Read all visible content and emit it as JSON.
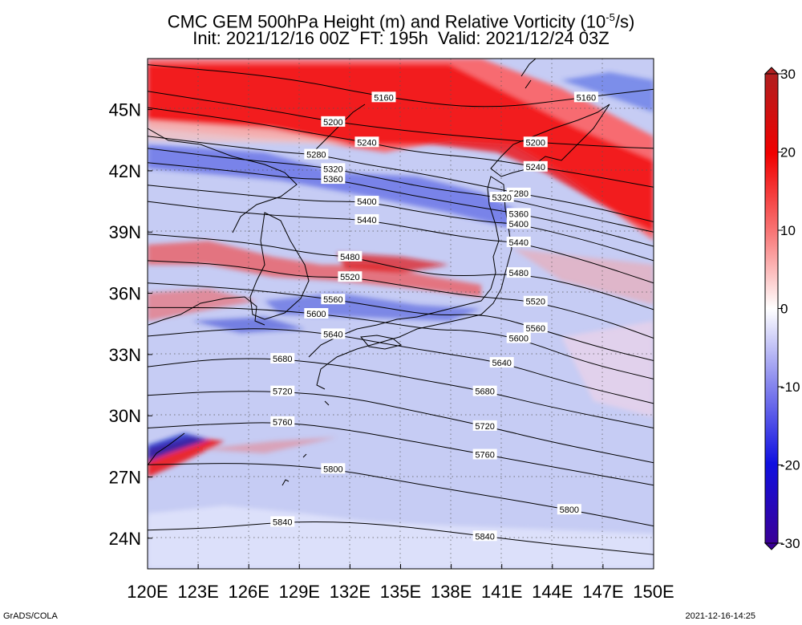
{
  "title": {
    "line1": "CMC GEM 500hPa Height (m) and Relative Vorticity (10",
    "line1_sup": "-5",
    "line1_end": "/s)",
    "line2": "Init: 2021/12/16 00Z  FT: 195h  Valid: 2021/12/24 03Z"
  },
  "axes": {
    "x_ticks": [
      "120E",
      "123E",
      "126E",
      "129E",
      "132E",
      "135E",
      "138E",
      "141E",
      "144E",
      "147E",
      "150E"
    ],
    "y_ticks": [
      "45N",
      "42N",
      "39N",
      "36N",
      "33N",
      "30N",
      "27N",
      "24N"
    ],
    "lon_range": [
      120,
      150
    ],
    "lat_range": [
      22.5,
      47.5
    ]
  },
  "colorbar": {
    "ticks": [
      "30",
      "20",
      "10",
      "0",
      "-10",
      "-20",
      "-30"
    ],
    "range": [
      -30,
      30
    ],
    "colors": {
      "max": "#b01f1f",
      "strong_pos": "#f00000",
      "mid_pos": "#f87878",
      "zero": "#ffffff",
      "mid_neg": "#8888ee",
      "strong_neg": "#1010e0",
      "min": "#3a0096"
    }
  },
  "contours": [
    {
      "label": "5160",
      "pts": [
        [
          120,
          47.2
        ],
        [
          128,
          46.6
        ],
        [
          134,
          45.6
        ],
        [
          140,
          45.0
        ],
        [
          146,
          45.6
        ],
        [
          150,
          46.0
        ]
      ]
    },
    {
      "label": "5200",
      "pts": [
        [
          120,
          45.9
        ],
        [
          127,
          45.0
        ],
        [
          131,
          44.4
        ],
        [
          136,
          43.9
        ],
        [
          140,
          43.6
        ],
        [
          143,
          43.4
        ],
        [
          147,
          43.2
        ],
        [
          150,
          43.1
        ]
      ]
    },
    {
      "label": "5240",
      "pts": [
        [
          120,
          45.1
        ],
        [
          126,
          44.4
        ],
        [
          130,
          43.8
        ],
        [
          133,
          43.4
        ],
        [
          136,
          42.9
        ],
        [
          140,
          42.6
        ],
        [
          143,
          42.2
        ],
        [
          146,
          41.8
        ],
        [
          150,
          41.2
        ]
      ]
    },
    {
      "label": "5280",
      "pts": [
        [
          120,
          43.7
        ],
        [
          124,
          43.3
        ],
        [
          128,
          42.9
        ],
        [
          130,
          42.8
        ],
        [
          133,
          42.3
        ],
        [
          136,
          41.9
        ],
        [
          139,
          41.4
        ],
        [
          142,
          40.9
        ],
        [
          146,
          40.3
        ],
        [
          150,
          39.5
        ]
      ]
    },
    {
      "label": "5320",
      "pts": [
        [
          120,
          43.1
        ],
        [
          125,
          42.6
        ],
        [
          129,
          42.3
        ],
        [
          131,
          42.1
        ],
        [
          134,
          41.6
        ],
        [
          137,
          41.1
        ],
        [
          141,
          40.7
        ],
        [
          145,
          39.9
        ],
        [
          150,
          39.0
        ]
      ]
    },
    {
      "label": "5360",
      "pts": [
        [
          120,
          42.4
        ],
        [
          125,
          42.0
        ],
        [
          129,
          41.6
        ],
        [
          131,
          41.6
        ],
        [
          135,
          40.9
        ],
        [
          139,
          40.3
        ],
        [
          142,
          39.9
        ],
        [
          146,
          39.2
        ],
        [
          150,
          38.3
        ]
      ]
    },
    {
      "label": "5400",
      "pts": [
        [
          120,
          41.3
        ],
        [
          126,
          40.8
        ],
        [
          130,
          40.5
        ],
        [
          133,
          40.5
        ],
        [
          136,
          40.0
        ],
        [
          140,
          39.5
        ],
        [
          142,
          39.4
        ],
        [
          146,
          38.6
        ],
        [
          150,
          37.6
        ]
      ]
    },
    {
      "label": "5440",
      "pts": [
        [
          120,
          40.5
        ],
        [
          126,
          39.9
        ],
        [
          130,
          39.7
        ],
        [
          133,
          39.6
        ],
        [
          137,
          39.0
        ],
        [
          140,
          38.6
        ],
        [
          142,
          38.5
        ],
        [
          146,
          37.6
        ],
        [
          150,
          36.5
        ]
      ]
    },
    {
      "label": "5480",
      "pts": [
        [
          120,
          38.9
        ],
        [
          126,
          38.5
        ],
        [
          130,
          37.9
        ],
        [
          132,
          37.8
        ],
        [
          135,
          37.2
        ],
        [
          138,
          36.8
        ],
        [
          142,
          37.0
        ],
        [
          146,
          36.3
        ],
        [
          150,
          35.2
        ]
      ]
    },
    {
      "label": "5520",
      "pts": [
        [
          120,
          37.6
        ],
        [
          125,
          37.4
        ],
        [
          129,
          36.8
        ],
        [
          132,
          36.8
        ],
        [
          135,
          36.4
        ],
        [
          138,
          36.0
        ],
        [
          140,
          35.8
        ],
        [
          143,
          35.6
        ],
        [
          147,
          34.7
        ],
        [
          150,
          33.8
        ]
      ]
    },
    {
      "label": "5560",
      "pts": [
        [
          120,
          36.5
        ],
        [
          124,
          36.3
        ],
        [
          127,
          36.1
        ],
        [
          131,
          35.7
        ],
        [
          134,
          35.3
        ],
        [
          137,
          34.9
        ],
        [
          140,
          35.0
        ],
        [
          143,
          34.3
        ],
        [
          147,
          33.3
        ],
        [
          150,
          32.7
        ]
      ]
    },
    {
      "label": "5600",
      "pts": [
        [
          120,
          35.3
        ],
        [
          124,
          35.3
        ],
        [
          127,
          35.2
        ],
        [
          130,
          35.0
        ],
        [
          133,
          34.7
        ],
        [
          137,
          34.2
        ],
        [
          139,
          34.2
        ],
        [
          142,
          33.8
        ],
        [
          146,
          32.6
        ],
        [
          150,
          31.8
        ]
      ]
    },
    {
      "label": "5640",
      "pts": [
        [
          120,
          33.9
        ],
        [
          124,
          34.2
        ],
        [
          127,
          34.3
        ],
        [
          131,
          34.0
        ],
        [
          135,
          33.4
        ],
        [
          138,
          33.0
        ],
        [
          141,
          32.6
        ],
        [
          145,
          31.6
        ],
        [
          150,
          30.6
        ]
      ]
    },
    {
      "label": "5680",
      "pts": [
        [
          120,
          32.4
        ],
        [
          124,
          32.8
        ],
        [
          128,
          32.8
        ],
        [
          132,
          32.4
        ],
        [
          136,
          31.8
        ],
        [
          140,
          31.2
        ],
        [
          144,
          30.4
        ],
        [
          150,
          29.4
        ]
      ]
    },
    {
      "label": "5720",
      "pts": [
        [
          120,
          31.0
        ],
        [
          124,
          31.2
        ],
        [
          128,
          31.2
        ],
        [
          132,
          30.9
        ],
        [
          136,
          30.2
        ],
        [
          140,
          29.5
        ],
        [
          144,
          28.7
        ],
        [
          150,
          27.7
        ]
      ]
    },
    {
      "label": "5760",
      "pts": [
        [
          120,
          29.4
        ],
        [
          124,
          29.6
        ],
        [
          128,
          29.7
        ],
        [
          132,
          29.3
        ],
        [
          136,
          28.7
        ],
        [
          140,
          28.1
        ],
        [
          144,
          27.5
        ],
        [
          150,
          26.6
        ]
      ]
    },
    {
      "label": "5800",
      "pts": [
        [
          120,
          27.6
        ],
        [
          126,
          27.7
        ],
        [
          131,
          27.4
        ],
        [
          135,
          26.8
        ],
        [
          140,
          26.1
        ],
        [
          145,
          25.4
        ],
        [
          150,
          24.6
        ]
      ]
    },
    {
      "label": "5840",
      "pts": [
        [
          120,
          24.4
        ],
        [
          124,
          24.5
        ],
        [
          128,
          24.8
        ],
        [
          132,
          24.8
        ],
        [
          136,
          24.5
        ],
        [
          140,
          24.1
        ],
        [
          144,
          23.7
        ],
        [
          150,
          23.2
        ]
      ]
    }
  ],
  "footer": {
    "left": "GrADS/COLA",
    "right": "2021-12-16-14:25"
  }
}
